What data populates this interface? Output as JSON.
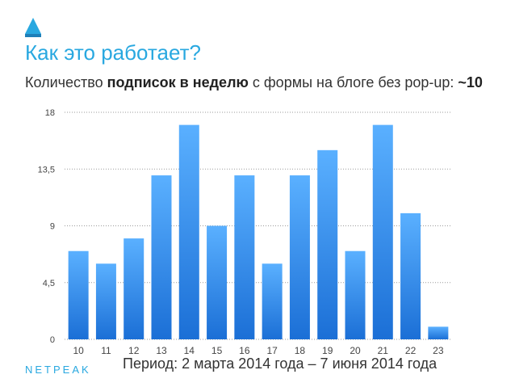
{
  "header": {
    "title": "Как это работает?",
    "subtitle_parts": [
      "Количество ",
      "подписок в неделю",
      " с формы на блоге без pop-up: ",
      "~10"
    ]
  },
  "footer": {
    "brand": "NETPEAK",
    "period": "Период: 2 марта 2014 года – 7 июня 2014 года"
  },
  "chart_data": {
    "type": "bar",
    "categories": [
      "10",
      "11",
      "12",
      "13",
      "14",
      "15",
      "16",
      "17",
      "18",
      "19",
      "20",
      "21",
      "22",
      "23"
    ],
    "values": [
      7,
      6,
      8,
      13,
      17,
      9,
      13,
      6,
      13,
      15,
      7,
      17,
      10,
      1
    ],
    "ylim": [
      0,
      18
    ],
    "yticks": [
      0,
      4.5,
      9,
      13.5,
      18
    ],
    "ytick_labels": [
      "0",
      "4,5",
      "9",
      "13,5",
      "18"
    ],
    "grid": "dotted horizontal",
    "colors": {
      "bar_top": "#5ab0ff",
      "bar_bottom": "#1b6fd6",
      "accent": "#29a8e0"
    }
  }
}
